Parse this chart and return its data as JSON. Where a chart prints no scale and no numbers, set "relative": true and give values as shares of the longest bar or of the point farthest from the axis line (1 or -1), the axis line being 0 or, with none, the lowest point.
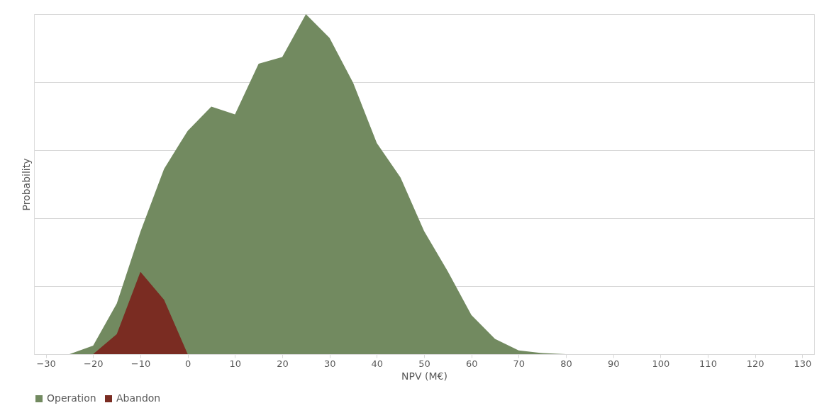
{
  "chart_data": {
    "type": "area",
    "xlabel": "NPV (M€)",
    "ylabel": "Probability",
    "relative": true,
    "xlim": [
      -32.5,
      132.5
    ],
    "xticks": [
      -30,
      -20,
      -10,
      0,
      10,
      20,
      30,
      40,
      50,
      60,
      70,
      80,
      90,
      100,
      110,
      120,
      130
    ],
    "grid": "y",
    "legend": "bottom",
    "series": [
      {
        "name": "Operation",
        "color": "#728a60",
        "x": [
          -25,
          -20,
          -15,
          -10,
          -5,
          0,
          5,
          10,
          15,
          20,
          25,
          30,
          35,
          40,
          45,
          50,
          55,
          60,
          65,
          70,
          75,
          80
        ],
        "values": [
          0,
          0.025,
          0.149,
          0.36,
          0.545,
          0.657,
          0.728,
          0.705,
          0.854,
          0.874,
          1,
          0.93,
          0.798,
          0.621,
          0.52,
          0.362,
          0.244,
          0.115,
          0.045,
          0.011,
          0.003,
          0
        ]
      },
      {
        "name": "Abandon",
        "color": "#7a2c22",
        "x": [
          -20,
          -15,
          -10,
          -5,
          0
        ],
        "values": [
          0,
          0.059,
          0.242,
          0.16,
          0
        ]
      }
    ]
  }
}
